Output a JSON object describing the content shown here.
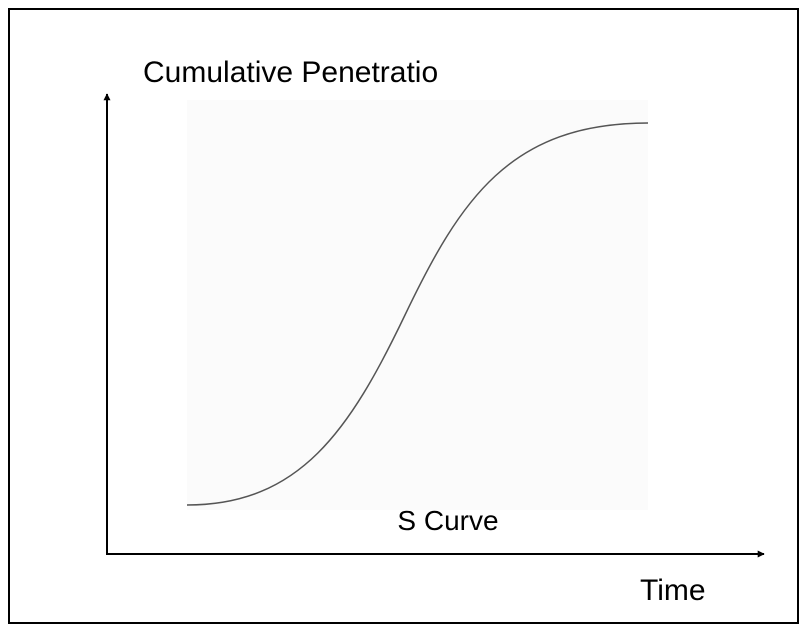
{
  "y_axis_label": "Cumulative Penetratio",
  "curve_label": "S Curve",
  "x_axis_label": "Time"
}
